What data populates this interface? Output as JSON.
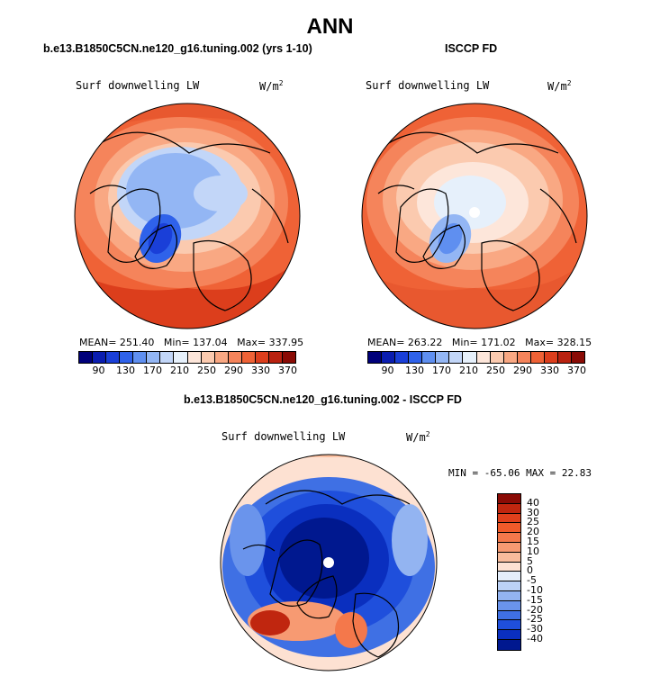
{
  "title": "ANN",
  "panels": [
    {
      "title": "b.e13.B1850C5CN.ne120_g16.tuning.002 (yrs 1-10)",
      "field": "Surf downwelling LW",
      "units": "W/m",
      "units_exp": "2",
      "stats": {
        "mean": "MEAN= 251.40",
        "min": "Min= 137.04",
        "max": "Max= 337.95"
      }
    },
    {
      "title": "ISCCP FD",
      "field": "Surf downwelling LW",
      "units": "W/m",
      "units_exp": "2",
      "stats": {
        "mean": "MEAN= 263.22",
        "min": "Min= 171.02",
        "max": "Max= 328.15"
      }
    }
  ],
  "abs_colorbar": {
    "labels": [
      "90",
      "130",
      "170",
      "210",
      "250",
      "290",
      "330",
      "370"
    ],
    "colors": [
      "#00007a",
      "#0a1db0",
      "#1a3fd8",
      "#2f62ea",
      "#5f8ff0",
      "#93b6f4",
      "#c2d6f8",
      "#e6f0fb",
      "#fde6da",
      "#fbcaaf",
      "#f9a883",
      "#f5845b",
      "#ef6236",
      "#dc3e1c",
      "#b92210",
      "#8a0b05"
    ]
  },
  "diff_panel": {
    "title": "b.e13.B1850C5CN.ne120_g16.tuning.002 - ISCCP FD",
    "field": "Surf downwelling LW",
    "units": "W/m",
    "units_exp": "2",
    "minmax": "MIN = -65.06 MAX =  22.83",
    "colorbar_labels": [
      "40",
      "30",
      "25",
      "20",
      "15",
      "10",
      "5",
      "0",
      "-5",
      "-10",
      "-15",
      "-20",
      "-25",
      "-30",
      "-40"
    ],
    "colorbar_colors": [
      "#8a0b05",
      "#c0260f",
      "#e0401c",
      "#f05a2a",
      "#f4784b",
      "#f79a72",
      "#f9bc9c",
      "#fde1d2",
      "#e4eefb",
      "#bcd2f6",
      "#93b4f1",
      "#6a94ec",
      "#3f70e4",
      "#1f4fdc",
      "#0a2fbf",
      "#00188f"
    ]
  }
}
